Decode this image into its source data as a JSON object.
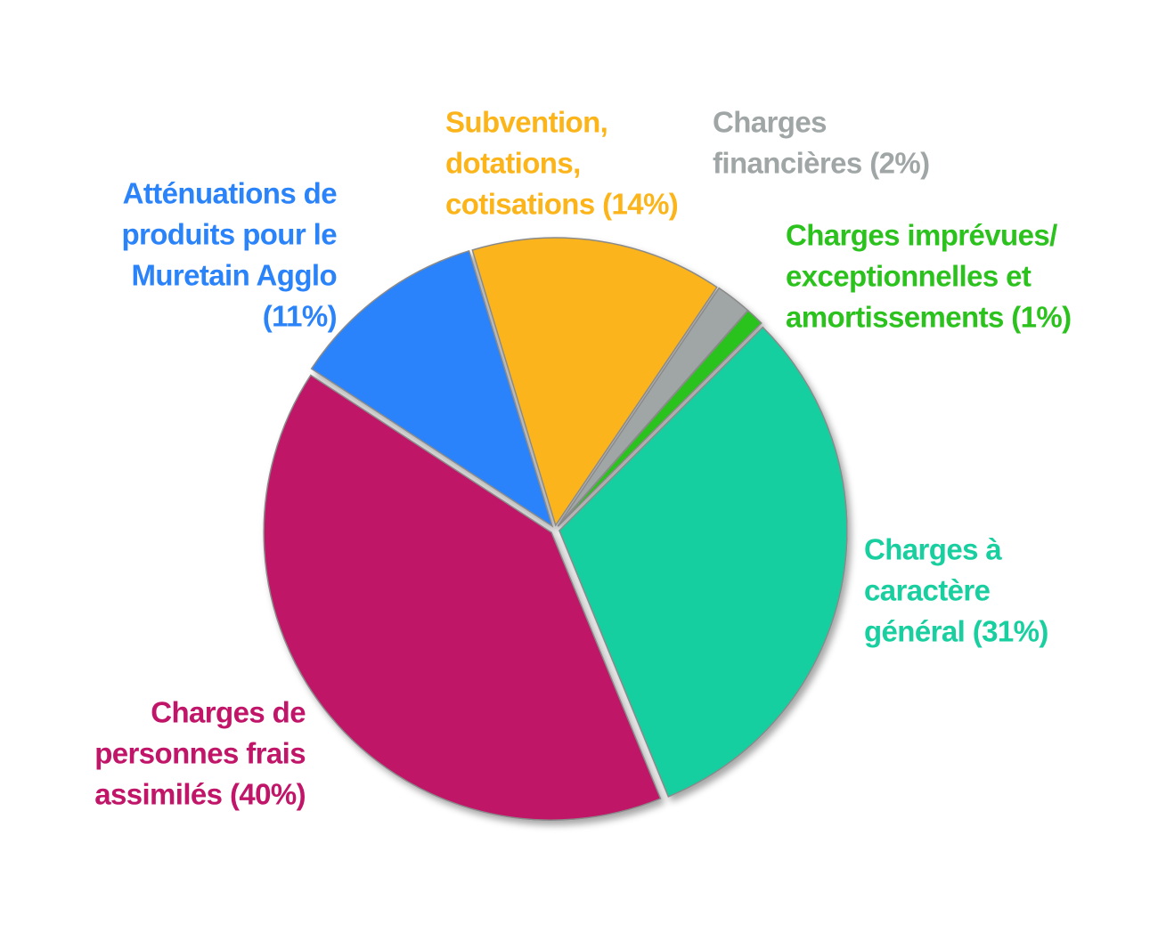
{
  "chart_data": {
    "type": "pie",
    "categories": [
      [
        "Charges à",
        "caractère",
        "général (31%)"
      ],
      [
        "Charges de",
        "personnes frais",
        "assimilés (40%)"
      ],
      [
        "Atténuations de",
        "produits pour le",
        "Muretain Agglo",
        "(11%)"
      ],
      [
        "Subvention,",
        "dotations,",
        "cotisations (14%)"
      ],
      [
        "Charges",
        "financières (2%)"
      ],
      [
        "Charges imprévues/",
        "exceptionnelles et",
        "amortissements (1%)"
      ]
    ],
    "values": [
      31,
      40,
      11,
      14,
      2,
      1
    ],
    "colors": [
      "#19cfa0",
      "#c01568",
      "#2b83fa",
      "#fbb41a",
      "#a0a6a6",
      "#2cc21e"
    ]
  }
}
